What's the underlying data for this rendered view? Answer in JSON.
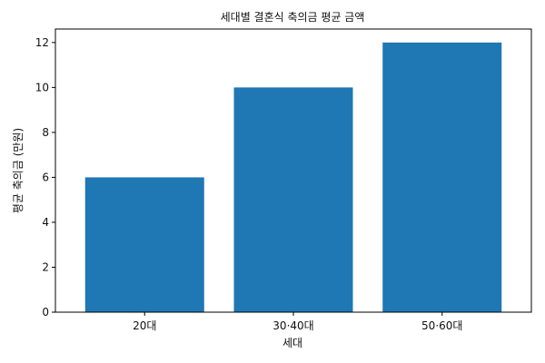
{
  "chart_data": {
    "type": "bar",
    "title": "세대별 결혼식 축의금 평균 금액",
    "xlabel": "세대",
    "ylabel": "평균 축의금 (만원)",
    "categories": [
      "20대",
      "30·40대",
      "50·60대"
    ],
    "values": [
      6,
      10,
      12
    ],
    "ylim": [
      0,
      12.6
    ],
    "yticks": [
      0,
      2,
      4,
      6,
      8,
      10,
      12
    ],
    "grid": false,
    "bar_color": "#1f77b4"
  }
}
